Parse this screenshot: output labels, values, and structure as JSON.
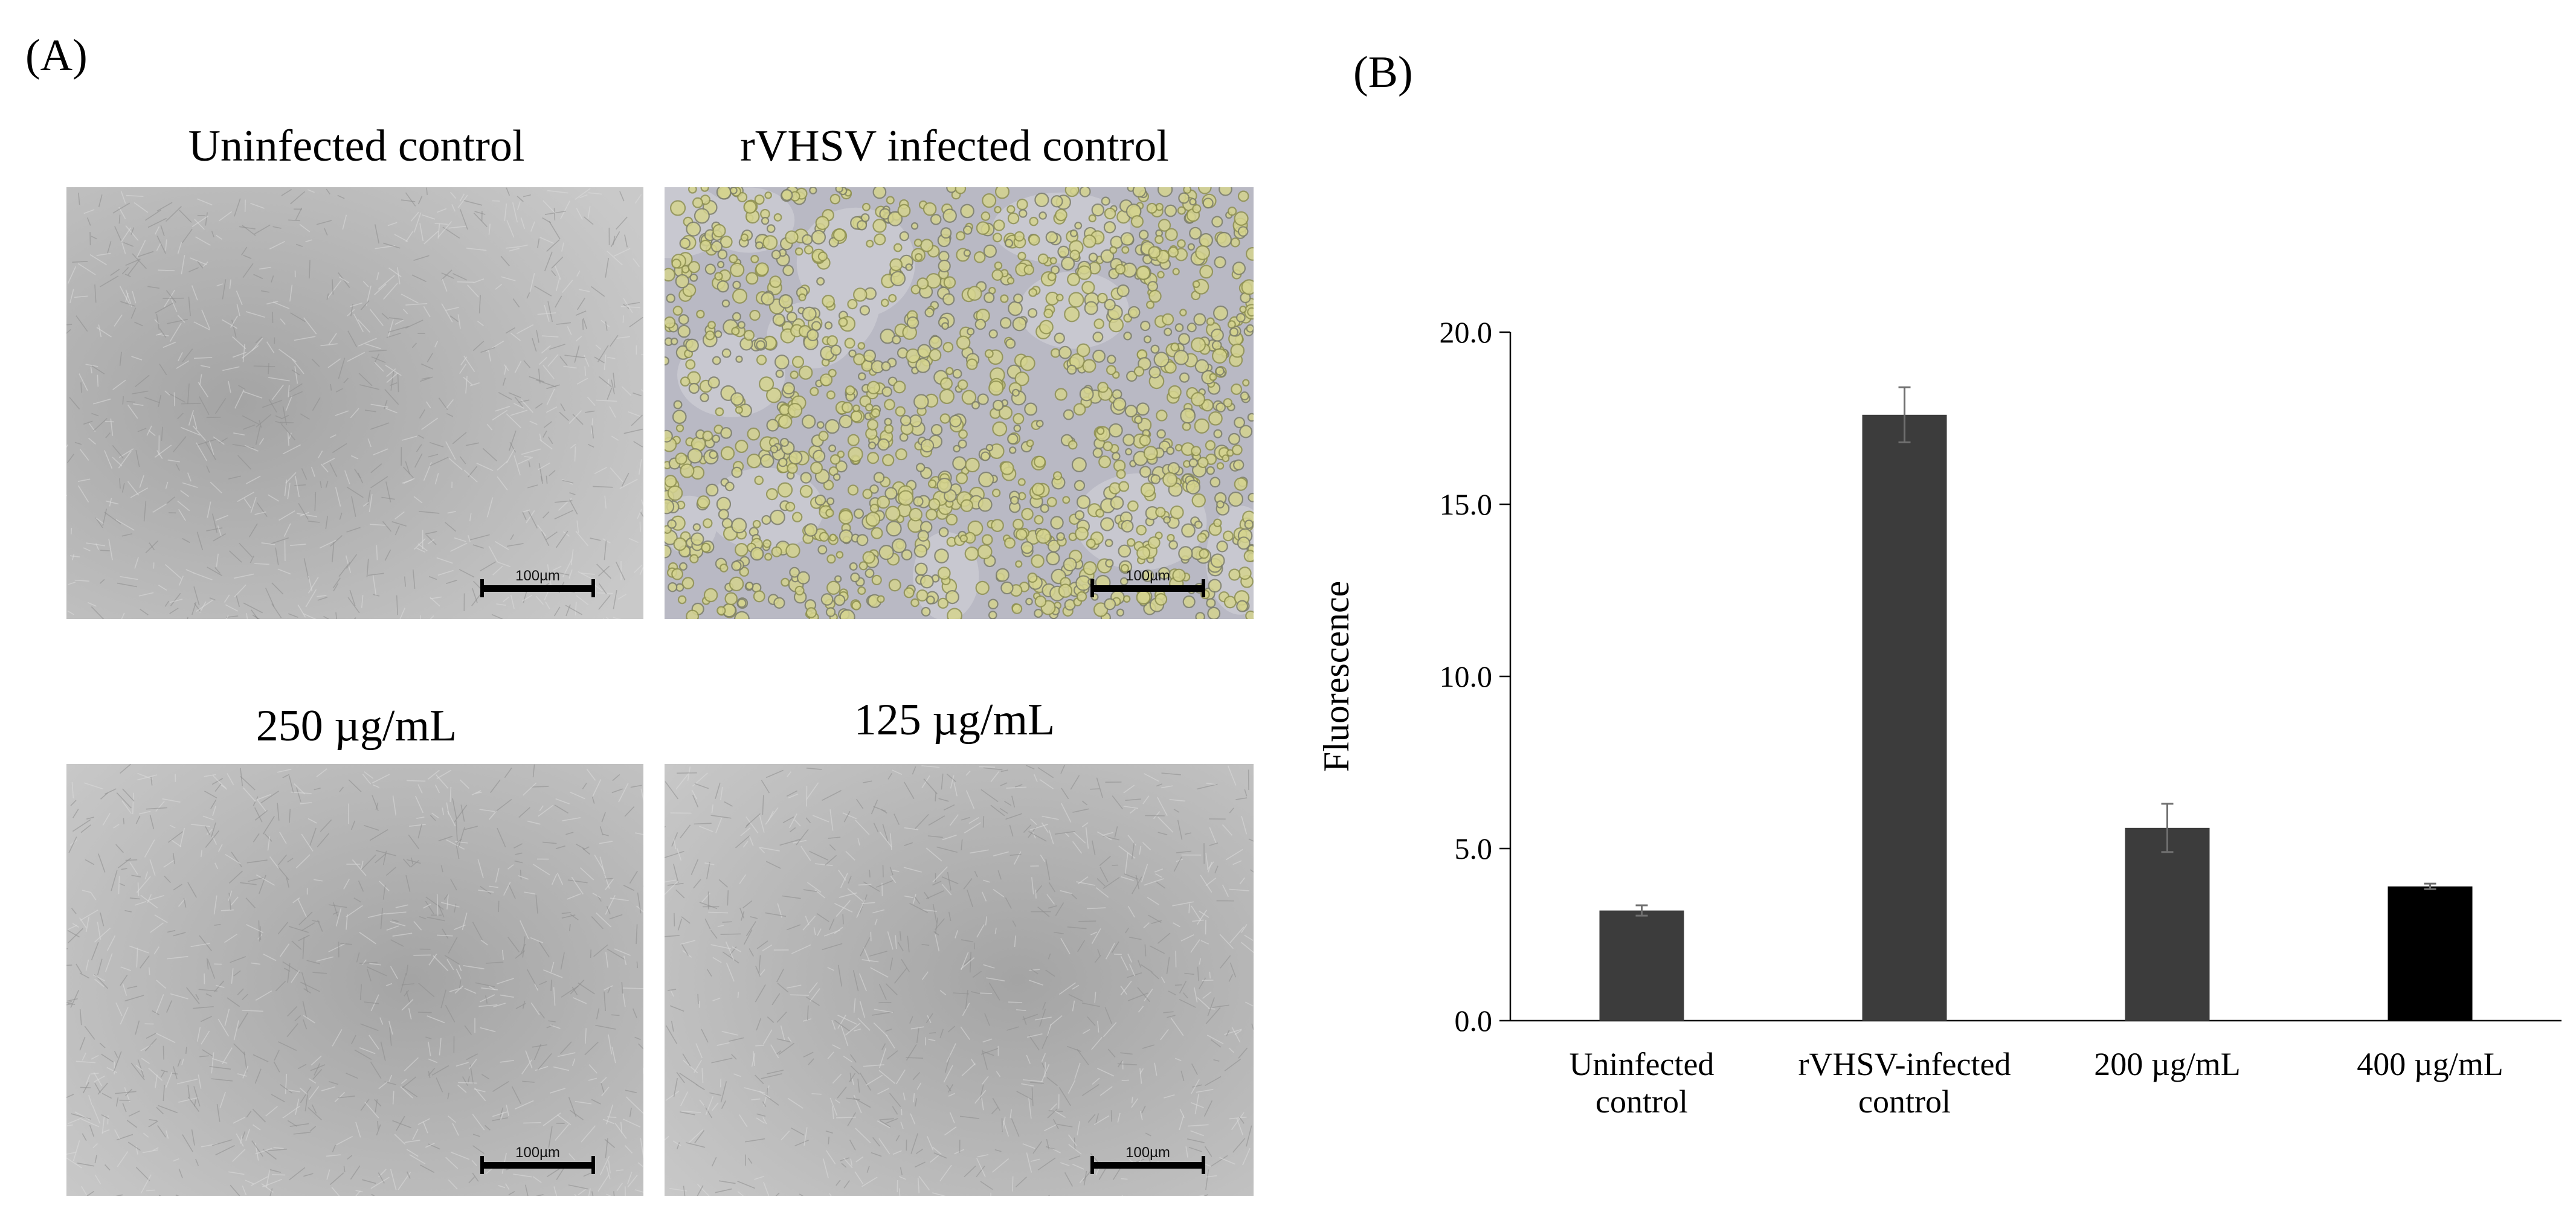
{
  "panel_a": {
    "label": "(A)",
    "images": [
      {
        "title": "Uninfected control",
        "scale_label": "100µm",
        "style": "smooth"
      },
      {
        "title": "rVHSV infected control",
        "scale_label": "100µm",
        "style": "infected"
      },
      {
        "title": "250 µg/mL",
        "scale_label": "100µm",
        "style": "smooth"
      },
      {
        "title": "125 µg/mL",
        "scale_label": "100µm",
        "style": "smooth"
      }
    ]
  },
  "panel_b": {
    "label": "(B)"
  },
  "chart_data": {
    "type": "bar",
    "ylabel": "Fluorescence",
    "xlabel": "",
    "ylim": [
      0,
      20
    ],
    "yticks": [
      "0.0",
      "5.0",
      "10.0",
      "15.0",
      "20.0"
    ],
    "categories": [
      [
        "Uninfected",
        "control"
      ],
      [
        "rVHSV-infected",
        "control"
      ],
      [
        "200 µg/mL"
      ],
      [
        "400 µg/mL"
      ]
    ],
    "values": [
      3.2,
      17.6,
      5.6,
      3.9
    ],
    "errors": [
      0.15,
      0.8,
      0.7,
      0.08
    ],
    "bar_colors": [
      "#3c3c3c",
      "#3c3c3c",
      "#3c3c3c",
      "#000000"
    ],
    "grid": false,
    "legend": "none"
  }
}
